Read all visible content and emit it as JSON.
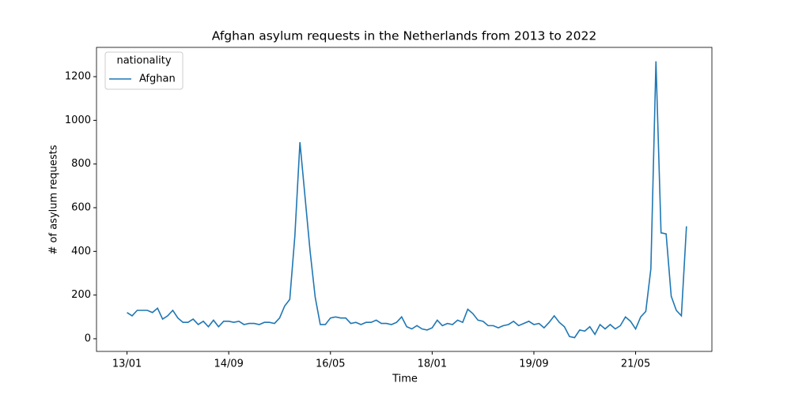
{
  "chart_data": {
    "type": "line",
    "title": "Afghan asylum requests in the Netherlands from 2013 to 2022",
    "xlabel": "Time",
    "ylabel": "# of asylum requests",
    "legend_title": "nationality",
    "legend_position": "upper left",
    "x": [
      "13/01",
      "13/02",
      "13/03",
      "13/04",
      "13/05",
      "13/06",
      "13/07",
      "13/08",
      "13/09",
      "13/10",
      "13/11",
      "13/12",
      "14/01",
      "14/02",
      "14/03",
      "14/04",
      "14/05",
      "14/06",
      "14/07",
      "14/08",
      "14/09",
      "14/10",
      "14/11",
      "14/12",
      "15/01",
      "15/02",
      "15/03",
      "15/04",
      "15/05",
      "15/06",
      "15/07",
      "15/08",
      "15/09",
      "15/10",
      "15/11",
      "15/12",
      "16/01",
      "16/02",
      "16/03",
      "16/04",
      "16/05",
      "16/06",
      "16/07",
      "16/08",
      "16/09",
      "16/10",
      "16/11",
      "16/12",
      "17/01",
      "17/02",
      "17/03",
      "17/04",
      "17/05",
      "17/06",
      "17/07",
      "17/08",
      "17/09",
      "17/10",
      "17/11",
      "17/12",
      "18/01",
      "18/02",
      "18/03",
      "18/04",
      "18/05",
      "18/06",
      "18/07",
      "18/08",
      "18/09",
      "18/10",
      "18/11",
      "18/12",
      "19/01",
      "19/02",
      "19/03",
      "19/04",
      "19/05",
      "19/06",
      "19/07",
      "19/08",
      "19/09",
      "19/10",
      "19/11",
      "19/12",
      "20/01",
      "20/02",
      "20/03",
      "20/04",
      "20/05",
      "20/06",
      "20/07",
      "20/08",
      "20/09",
      "20/10",
      "20/11",
      "20/12",
      "21/01",
      "21/02",
      "21/03",
      "21/04",
      "21/05",
      "21/06",
      "21/07",
      "21/08",
      "21/09",
      "21/10",
      "21/11",
      "21/12",
      "22/01",
      "22/02",
      "22/03"
    ],
    "series": [
      {
        "name": "Afghan",
        "color": "#1f77b4",
        "values": [
          120,
          105,
          130,
          130,
          130,
          120,
          140,
          90,
          105,
          130,
          95,
          75,
          75,
          90,
          65,
          80,
          55,
          85,
          55,
          80,
          80,
          75,
          80,
          65,
          70,
          70,
          65,
          75,
          75,
          70,
          95,
          150,
          180,
          470,
          900,
          650,
          400,
          190,
          65,
          65,
          95,
          100,
          95,
          95,
          70,
          75,
          65,
          75,
          75,
          85,
          70,
          70,
          65,
          75,
          100,
          55,
          45,
          60,
          45,
          40,
          50,
          85,
          60,
          70,
          65,
          85,
          75,
          135,
          115,
          85,
          80,
          60,
          60,
          50,
          60,
          65,
          80,
          60,
          70,
          80,
          65,
          70,
          50,
          75,
          105,
          75,
          55,
          10,
          5,
          40,
          35,
          55,
          20,
          65,
          45,
          65,
          45,
          60,
          100,
          80,
          45,
          100,
          125,
          320,
          1270,
          485,
          480,
          195,
          130,
          105,
          515
        ]
      }
    ],
    "xlim": [
      "12/07",
      "22/08"
    ],
    "xticks": [
      "13/01",
      "14/09",
      "16/05",
      "18/01",
      "19/09",
      "21/05"
    ],
    "ylim": [
      -58,
      1334
    ],
    "yticks": [
      0,
      200,
      400,
      600,
      800,
      1000,
      1200
    ]
  }
}
